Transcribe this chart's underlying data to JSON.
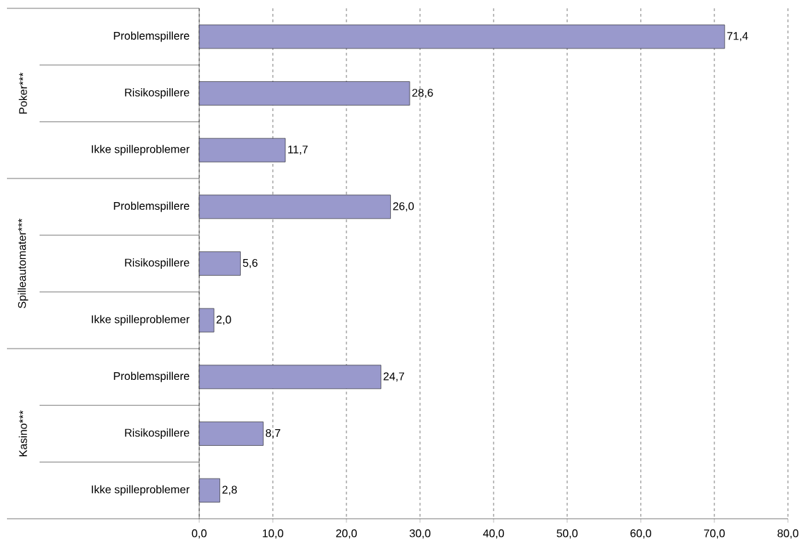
{
  "chart_data": {
    "type": "bar",
    "orientation": "horizontal",
    "categories": [
      "Problemspillere",
      "Risikospillere",
      "Ikke spilleproblemer",
      "Problemspillere",
      "Risikospillere",
      "Ikke spilleproblemer",
      "Problemspillere",
      "Risikospillere",
      "Ikke spilleproblemer"
    ],
    "values": [
      71.4,
      28.6,
      11.7,
      26.0,
      5.6,
      2.0,
      24.7,
      8.7,
      2.8
    ],
    "value_labels": [
      "71,4",
      "28,6",
      "11,7",
      "26,0",
      "5,6",
      "2,0",
      "24,7",
      "8,7",
      "2,8"
    ],
    "color": "#9999cc",
    "xlim": [
      0,
      80
    ],
    "xticks": [
      {
        "value": 0,
        "label": "0,0"
      },
      {
        "value": 10,
        "label": "10,0"
      },
      {
        "value": 20,
        "label": "20,0"
      },
      {
        "value": 30,
        "label": "30,0"
      },
      {
        "value": 40,
        "label": "40,0"
      },
      {
        "value": 50,
        "label": "50,0"
      },
      {
        "value": 60,
        "label": "60,0"
      },
      {
        "value": 70,
        "label": "70,0"
      },
      {
        "value": 80,
        "label": "80,0"
      }
    ],
    "grid": "x",
    "annotations": [
      "Poker***",
      "Spilleautomater***",
      "Kasino***"
    ]
  }
}
